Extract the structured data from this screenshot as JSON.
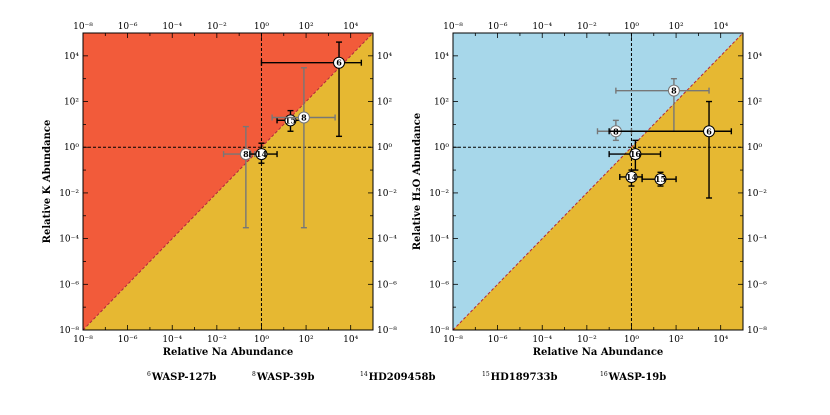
{
  "chart_data": [
    {
      "type": "scatter",
      "panel": "left",
      "xlabel": "Relative Na Abundance",
      "ylabel": "Relative K Abundance",
      "x_scale": "log",
      "y_scale": "log",
      "xlim": [
        1e-08,
        100000.0
      ],
      "ylim": [
        1e-08,
        100000.0
      ],
      "x_ticks": [
        "10⁻⁸",
        "10⁻⁶",
        "10⁻⁴",
        "10⁻²",
        "10⁰",
        "10²",
        "10⁴"
      ],
      "y_ticks": [
        "10⁻⁸",
        "10⁻⁶",
        "10⁻⁴",
        "10⁻²",
        "10⁰",
        "10²",
        "10⁴"
      ],
      "regions": [
        {
          "name": "upper-left",
          "color": "#f25b3a"
        },
        {
          "name": "lower-right",
          "color": "#e6b832"
        }
      ],
      "diagonal": "y = x",
      "reference_lines": {
        "x": 1,
        "y": 1
      },
      "points": [
        {
          "label": "6",
          "x": 3000,
          "y": 5000,
          "xerr": [
            1,
            30000
          ],
          "yerr": [
            3,
            40000
          ],
          "color": "#000000"
        },
        {
          "label": "15",
          "x": 20,
          "y": 15,
          "xerr": [
            5,
            80
          ],
          "yerr": [
            5,
            40
          ],
          "color": "#000000"
        },
        {
          "label": "8",
          "x": 80,
          "y": 20,
          "xerr": [
            3,
            2000
          ],
          "yerr": [
            0.0003,
            3000
          ],
          "color": "#777777"
        },
        {
          "label": "8",
          "x": 0.2,
          "y": 0.5,
          "xerr": [
            0.02,
            0.5
          ],
          "yerr": [
            0.0003,
            8
          ],
          "color": "#777777"
        },
        {
          "label": "14",
          "x": 1,
          "y": 0.5,
          "xerr": [
            0.3,
            5
          ],
          "yerr": [
            0.2,
            1.5
          ],
          "color": "#000000"
        }
      ]
    },
    {
      "type": "scatter",
      "panel": "right",
      "xlabel": "Relative Na Abundance",
      "ylabel": "Relative H₂O Abundance",
      "x_scale": "log",
      "y_scale": "log",
      "xlim": [
        1e-08,
        100000.0
      ],
      "ylim": [
        1e-08,
        100000.0
      ],
      "x_ticks": [
        "10⁻⁸",
        "10⁻⁶",
        "10⁻⁴",
        "10⁻²",
        "10⁰",
        "10²",
        "10⁴"
      ],
      "y_ticks": [
        "10⁻⁸",
        "10⁻⁶",
        "10⁻⁴",
        "10⁻²",
        "10⁰",
        "10²",
        "10⁴"
      ],
      "regions": [
        {
          "name": "upper-left",
          "color": "#a7d7ea"
        },
        {
          "name": "lower-right",
          "color": "#e6b832"
        }
      ],
      "diagonal": "y = x",
      "reference_lines": {
        "x": 1,
        "y": 1
      },
      "points": [
        {
          "label": "8",
          "x": 80,
          "y": 300,
          "xerr": [
            0.2,
            3000
          ],
          "yerr": [
            5,
            1000
          ],
          "color": "#777777"
        },
        {
          "label": "8",
          "x": 0.2,
          "y": 5,
          "xerr": [
            0.03,
            1
          ],
          "yerr": [
            2,
            15
          ],
          "color": "#777777"
        },
        {
          "label": "6",
          "x": 3000,
          "y": 5,
          "xerr": [
            0.1,
            30000
          ],
          "yerr": [
            0.006,
            100
          ],
          "color": "#000000"
        },
        {
          "label": "16",
          "x": 1.5,
          "y": 0.5,
          "xerr": [
            0.1,
            20
          ],
          "yerr": [
            0.1,
            2
          ],
          "color": "#000000"
        },
        {
          "label": "14",
          "x": 1,
          "y": 0.05,
          "xerr": [
            0.3,
            3
          ],
          "yerr": [
            0.02,
            0.1
          ],
          "color": "#000000"
        },
        {
          "label": "15",
          "x": 20,
          "y": 0.04,
          "xerr": [
            3,
            100
          ],
          "yerr": [
            0.02,
            0.08
          ],
          "color": "#000000"
        }
      ]
    }
  ],
  "legend": [
    {
      "num": "6",
      "name": "WASP-127b"
    },
    {
      "num": "8",
      "name": "WASP-39b"
    },
    {
      "num": "14",
      "name": "HD209458b"
    },
    {
      "num": "15",
      "name": "HD189733b"
    },
    {
      "num": "16",
      "name": "WASP-19b"
    }
  ]
}
